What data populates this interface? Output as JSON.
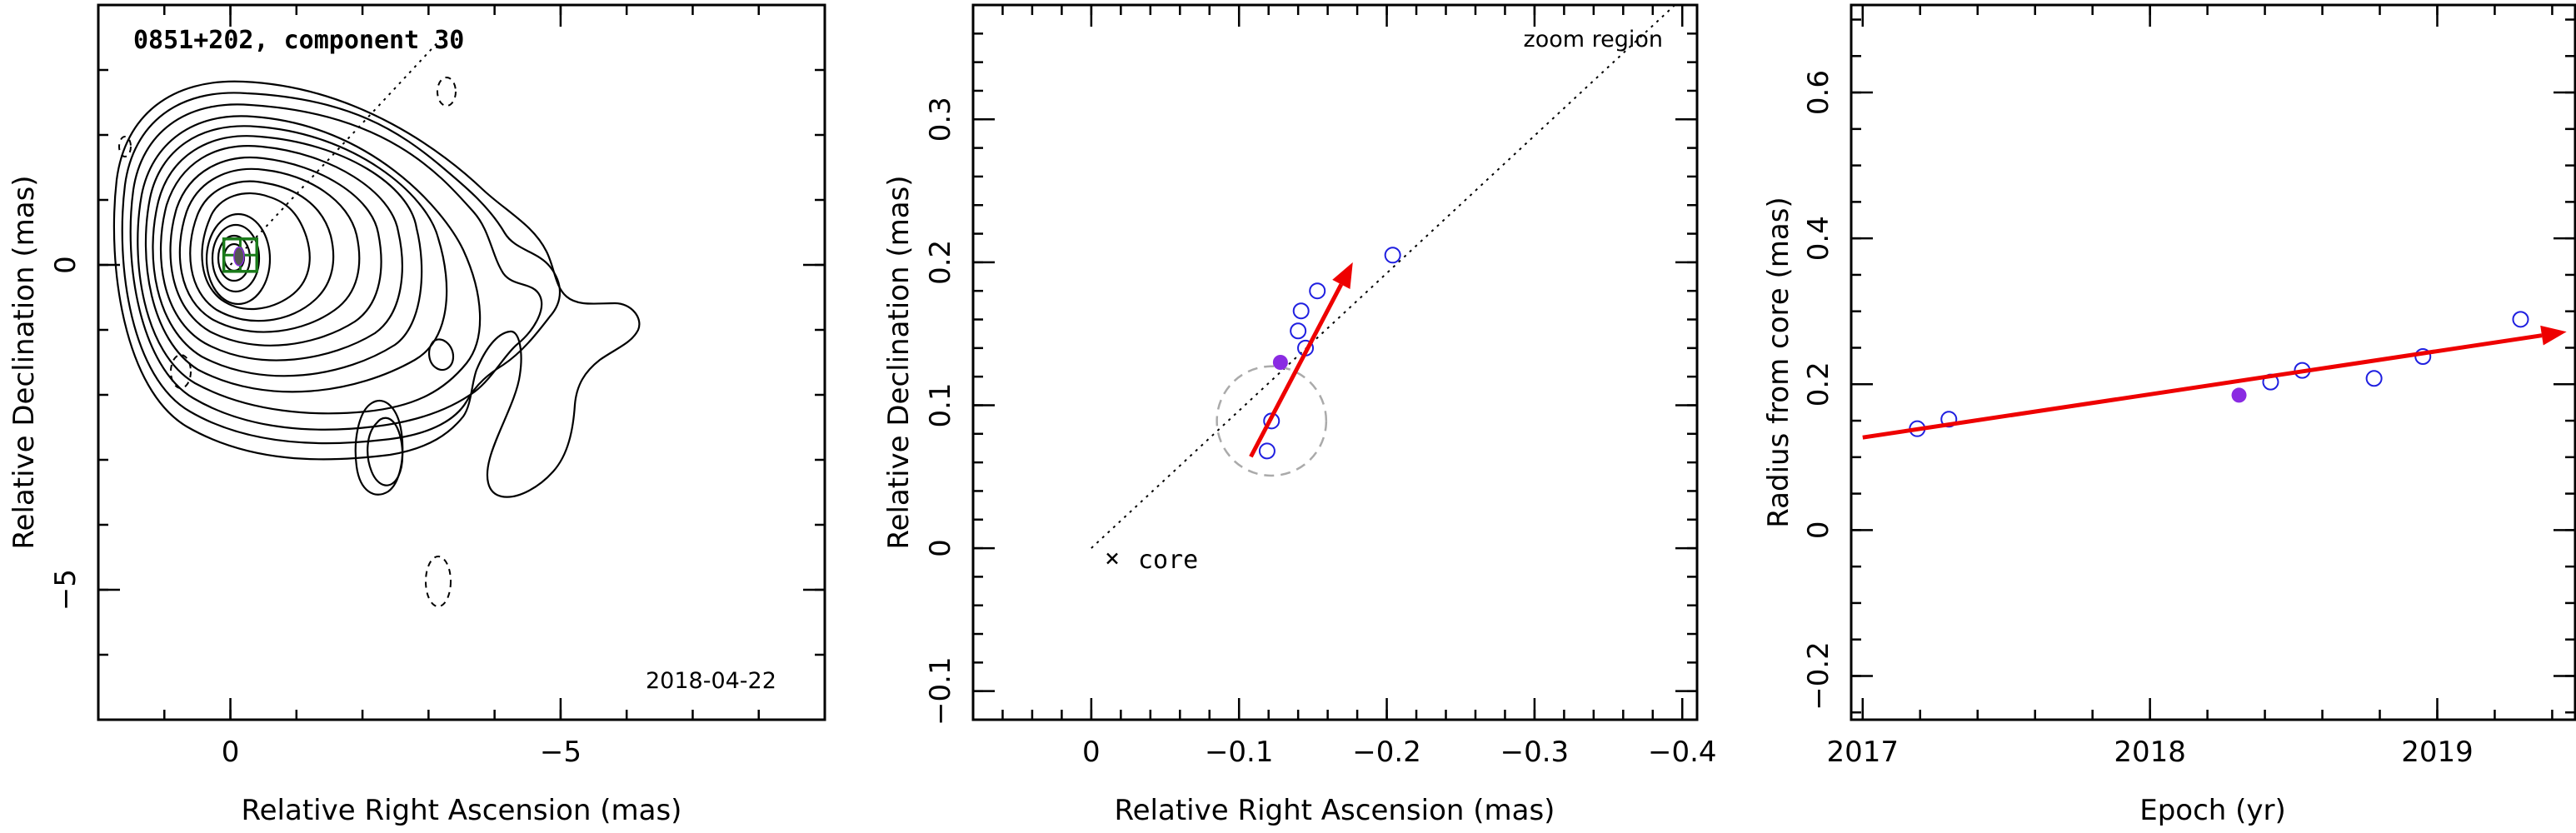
{
  "colors": {
    "axes": "#000000",
    "contour": "#000000",
    "points": "#1f1fe0",
    "highlight": "#8a2be2",
    "arrow": "#ee0000",
    "box": "#1a7a1a",
    "zoom_circle": "#aaaaaa"
  },
  "chart_data": [
    {
      "type": "contour",
      "title": "0851+202, component 30",
      "date_label": "2018-04-22",
      "xlabel": "Relative Right Ascension (mas)",
      "ylabel": "Relative Declination (mas)",
      "xlim": [
        2,
        -9
      ],
      "ylim": [
        -7,
        4
      ],
      "x_ticks": [
        0,
        -5
      ],
      "y_ticks": [
        -5,
        0
      ],
      "x_tick_labels": [
        "0",
        "−5"
      ],
      "y_tick_labels": [
        "−5",
        "0"
      ],
      "component_position": [
        -0.13,
        0.13
      ],
      "zoom_box": {
        "ra": [
          0.1,
          -0.4
        ],
        "dec": [
          -0.1,
          0.4
        ]
      },
      "pa_line": {
        "from": [
          0.0,
          0.0
        ],
        "to": [
          -3.3,
          3.6
        ]
      }
    },
    {
      "type": "scatter",
      "xlabel": "Relative Right Ascension (mas)",
      "ylabel": "Relative Declination (mas)",
      "xlim": [
        0.08,
        -0.41
      ],
      "ylim": [
        -0.12,
        0.38
      ],
      "x_ticks": [
        0,
        -0.1,
        -0.2,
        -0.3,
        -0.4
      ],
      "y_ticks": [
        -0.1,
        0,
        0.1,
        0.2,
        0.3
      ],
      "x_tick_labels": [
        "0",
        "−0.1",
        "−0.2",
        "−0.3",
        "−0.4"
      ],
      "y_tick_labels": [
        "−0.1",
        "0",
        "0.1",
        "0.2",
        "0.3"
      ],
      "annotations": {
        "core": "core",
        "zoom": "zoom region"
      },
      "points": [
        {
          "x": -0.119,
          "y": 0.068
        },
        {
          "x": -0.122,
          "y": 0.089
        },
        {
          "x": -0.145,
          "y": 0.14
        },
        {
          "x": -0.14,
          "y": 0.152
        },
        {
          "x": -0.142,
          "y": 0.166
        },
        {
          "x": -0.153,
          "y": 0.18
        },
        {
          "x": -0.204,
          "y": 0.205
        }
      ],
      "highlight_point": {
        "x": -0.128,
        "y": 0.13
      },
      "mean_position_circle": {
        "x": -0.122,
        "y": 0.089,
        "r": 0.037
      },
      "velocity_arrow": {
        "from": [
          -0.108,
          0.064
        ],
        "to": [
          -0.177,
          0.2
        ]
      },
      "pa_line": {
        "from": [
          0.0,
          0.0
        ],
        "to": [
          -0.395,
          0.38
        ]
      }
    },
    {
      "type": "scatter",
      "xlabel": "Epoch (yr)",
      "ylabel": "Radius from core (mas)",
      "xlim": [
        2016.96,
        2019.48
      ],
      "ylim": [
        -0.26,
        0.72
      ],
      "x_ticks": [
        2017,
        2018,
        2019
      ],
      "y_ticks": [
        -0.2,
        0,
        0.2,
        0.4,
        0.6
      ],
      "x_tick_labels": [
        "2017",
        "2018",
        "2019"
      ],
      "y_tick_labels": [
        "−0.2",
        "0",
        "0.2",
        "0.4",
        "0.6"
      ],
      "points": [
        {
          "x": 2017.19,
          "y": 0.139
        },
        {
          "x": 2017.3,
          "y": 0.152
        },
        {
          "x": 2018.42,
          "y": 0.203
        },
        {
          "x": 2018.53,
          "y": 0.219
        },
        {
          "x": 2018.78,
          "y": 0.208
        },
        {
          "x": 2018.95,
          "y": 0.238
        },
        {
          "x": 2019.29,
          "y": 0.289
        }
      ],
      "highlight_point": {
        "x": 2018.31,
        "y": 0.185
      },
      "fit_arrow": {
        "from": [
          2017.0,
          0.127
        ],
        "to": [
          2019.45,
          0.272
        ]
      }
    }
  ]
}
